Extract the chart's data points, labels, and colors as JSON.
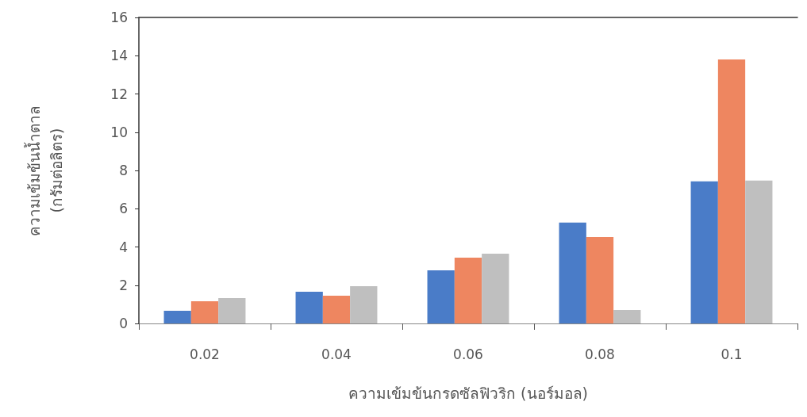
{
  "chart_data": {
    "type": "bar",
    "xlabel": "ความเข้มข้นกรดซัลฟิวริก (นอร์มอล)",
    "ylabel": "ความเข้มข้นน้ำตาล\n(กรัมต่อลิตร)",
    "categories": [
      "0.02",
      "0.04",
      "0.06",
      "0.08",
      "0.1"
    ],
    "series": [
      {
        "color": "#4a7cc8",
        "values": [
          0.66,
          1.66,
          2.78,
          5.27,
          7.43
        ]
      },
      {
        "color": "#ee8660",
        "values": [
          1.16,
          1.45,
          3.44,
          4.52,
          13.8
        ]
      },
      {
        "color": "#bfbfbf",
        "values": [
          1.33,
          1.95,
          3.65,
          0.7,
          7.47
        ]
      }
    ],
    "ylim": [
      0,
      16
    ],
    "yticks": [
      0,
      2,
      4,
      6,
      8,
      10,
      12,
      14,
      16
    ],
    "grid": false
  }
}
